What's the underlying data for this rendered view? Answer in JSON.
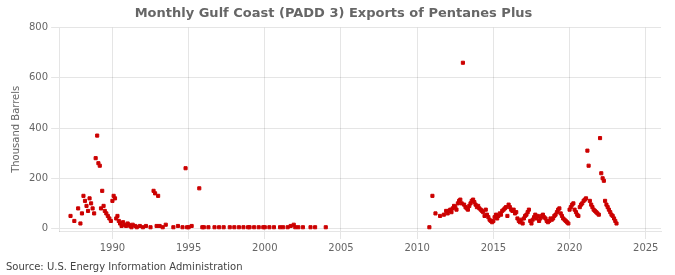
{
  "chart_data": {
    "type": "scatter",
    "title": "Monthly Gulf Coast (PADD 3) Exports of Pentanes Plus",
    "ylabel": "Thousand Barrels",
    "annotations": [
      "Source: U.S. Energy Information Administration"
    ],
    "color": "#cc0000",
    "marker": "square",
    "grid": true,
    "xlim": [
      1986.5,
      2026
    ],
    "ylim": [
      -10,
      800
    ],
    "xticks": [
      1990,
      1995,
      2000,
      2005,
      2010,
      2015,
      2020,
      2025
    ],
    "yticks": [
      0,
      200,
      400,
      600,
      800
    ],
    "x": [
      1987.25,
      1987.5,
      1987.75,
      1987.9,
      1988.0,
      1988.1,
      1988.2,
      1988.3,
      1988.4,
      1988.5,
      1988.6,
      1988.7,
      1988.8,
      1988.9,
      1989.0,
      1989.08,
      1989.17,
      1989.25,
      1989.33,
      1989.42,
      1989.5,
      1989.6,
      1989.7,
      1989.8,
      1989.9,
      1990.0,
      1990.08,
      1990.17,
      1990.25,
      1990.33,
      1990.42,
      1990.5,
      1990.6,
      1990.7,
      1990.8,
      1990.9,
      1991.0,
      1991.08,
      1991.17,
      1991.25,
      1991.33,
      1991.5,
      1991.6,
      1991.8,
      1992.0,
      1992.2,
      1992.5,
      1992.7,
      1992.8,
      1992.9,
      1993.0,
      1993.1,
      1993.3,
      1993.5,
      1994.0,
      1994.3,
      1994.6,
      1994.8,
      1994.9,
      1995.0,
      1995.2,
      1995.7,
      1995.9,
      1996.0,
      1996.3,
      1996.7,
      1997.0,
      1997.3,
      1997.7,
      1998.0,
      1998.3,
      1998.6,
      1998.9,
      1999.0,
      1999.3,
      1999.6,
      1999.9,
      2000.0,
      2000.3,
      2000.6,
      2001.0,
      2001.2,
      2001.5,
      2001.7,
      2001.9,
      2002.0,
      2002.2,
      2002.5,
      2003.0,
      2003.3,
      2004.0,
      2010.8,
      2011.0,
      2011.2,
      2011.5,
      2011.75,
      2011.9,
      2012.0,
      2012.08,
      2012.17,
      2012.25,
      2012.33,
      2012.42,
      2012.5,
      2012.58,
      2012.67,
      2012.75,
      2012.83,
      2012.92,
      2013.0,
      2013.08,
      2013.17,
      2013.25,
      2013.33,
      2013.42,
      2013.5,
      2013.58,
      2013.67,
      2013.75,
      2013.83,
      2013.92,
      2014.0,
      2014.08,
      2014.17,
      2014.25,
      2014.33,
      2014.42,
      2014.5,
      2014.58,
      2014.67,
      2014.75,
      2014.83,
      2014.92,
      2015.0,
      2015.08,
      2015.17,
      2015.25,
      2015.33,
      2015.42,
      2015.5,
      2015.58,
      2015.67,
      2015.75,
      2015.83,
      2015.92,
      2016.0,
      2016.08,
      2016.17,
      2016.25,
      2016.33,
      2016.42,
      2016.5,
      2016.58,
      2016.67,
      2016.75,
      2016.83,
      2016.92,
      2017.0,
      2017.08,
      2017.17,
      2017.25,
      2017.33,
      2017.42,
      2017.5,
      2017.58,
      2017.67,
      2017.75,
      2017.83,
      2017.92,
      2018.0,
      2018.08,
      2018.17,
      2018.25,
      2018.33,
      2018.42,
      2018.5,
      2018.58,
      2018.67,
      2018.75,
      2018.83,
      2018.92,
      2019.0,
      2019.08,
      2019.17,
      2019.25,
      2019.33,
      2019.42,
      2019.5,
      2019.58,
      2019.67,
      2019.75,
      2019.83,
      2019.92,
      2020.0,
      2020.08,
      2020.17,
      2020.25,
      2020.33,
      2020.42,
      2020.5,
      2020.58,
      2020.67,
      2020.75,
      2020.83,
      2020.92,
      2021.0,
      2021.08,
      2021.17,
      2021.25,
      2021.33,
      2021.42,
      2021.5,
      2021.58,
      2021.67,
      2021.75,
      2021.83,
      2021.92,
      2022.0,
      2022.08,
      2022.17,
      2022.25,
      2022.33,
      2022.42,
      2022.5,
      2022.58,
      2022.67,
      2022.75,
      2022.83,
      2022.92,
      2023.0,
      2023.08
    ],
    "values": [
      50,
      30,
      80,
      20,
      60,
      130,
      110,
      90,
      70,
      120,
      100,
      80,
      60,
      280,
      370,
      260,
      250,
      80,
      150,
      90,
      70,
      60,
      50,
      40,
      30,
      110,
      130,
      120,
      40,
      50,
      30,
      20,
      10,
      25,
      15,
      10,
      20,
      15,
      10,
      5,
      15,
      10,
      5,
      10,
      5,
      10,
      5,
      150,
      140,
      10,
      130,
      10,
      5,
      15,
      5,
      10,
      5,
      240,
      5,
      5,
      10,
      160,
      5,
      5,
      5,
      5,
      5,
      5,
      5,
      5,
      5,
      5,
      5,
      5,
      5,
      5,
      5,
      5,
      5,
      5,
      5,
      5,
      5,
      10,
      15,
      5,
      5,
      5,
      5,
      5,
      5,
      5,
      130,
      60,
      50,
      55,
      70,
      60,
      70,
      75,
      65,
      80,
      90,
      85,
      75,
      100,
      110,
      115,
      100,
      660,
      95,
      85,
      80,
      75,
      90,
      100,
      110,
      115,
      105,
      95,
      85,
      90,
      80,
      75,
      70,
      65,
      50,
      75,
      55,
      45,
      35,
      30,
      25,
      30,
      45,
      55,
      40,
      50,
      60,
      55,
      70,
      75,
      80,
      85,
      50,
      95,
      85,
      75,
      70,
      75,
      60,
      65,
      40,
      30,
      25,
      35,
      20,
      40,
      50,
      55,
      65,
      75,
      30,
      20,
      35,
      45,
      55,
      40,
      50,
      30,
      40,
      50,
      55,
      45,
      40,
      30,
      25,
      30,
      40,
      35,
      40,
      50,
      55,
      65,
      75,
      80,
      60,
      50,
      40,
      35,
      30,
      25,
      20,
      75,
      85,
      95,
      100,
      75,
      65,
      55,
      50,
      85,
      95,
      100,
      110,
      115,
      120,
      310,
      250,
      110,
      95,
      85,
      75,
      70,
      65,
      60,
      55,
      360,
      220,
      200,
      190,
      110,
      95,
      85,
      75,
      65,
      55,
      50,
      40,
      30,
      20
    ]
  }
}
